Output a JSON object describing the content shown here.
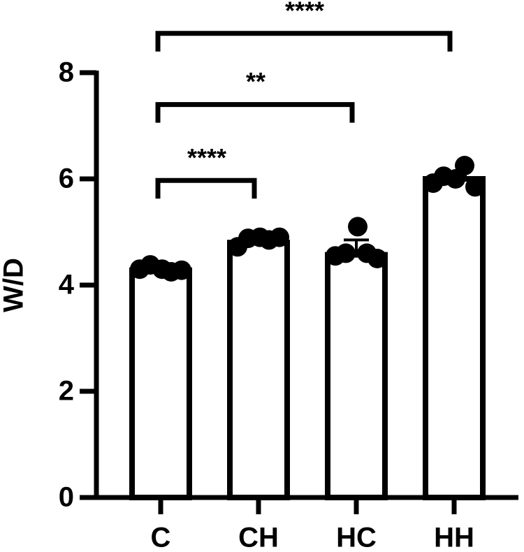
{
  "chart_data": {
    "type": "bar",
    "y_label": "W/D",
    "categories": [
      "C",
      "CH",
      "HC",
      "HH"
    ],
    "values": [
      4.28,
      4.8,
      4.57,
      6.0
    ],
    "errors": [
      0.03,
      0.04,
      0.28,
      0.07
    ],
    "points": [
      [
        4.3,
        4.38,
        4.3,
        4.25,
        4.28
      ],
      [
        4.72,
        4.88,
        4.9,
        4.85,
        4.9
      ],
      [
        4.55,
        4.6,
        5.1,
        4.6,
        4.5
      ],
      [
        5.92,
        6.05,
        6.0,
        6.25,
        5.85
      ]
    ],
    "color": "#000000",
    "ylim": [
      0,
      8
    ],
    "yticks": [
      0,
      2,
      4,
      6,
      8
    ],
    "annotations": [
      {
        "from": "C",
        "to": "CH",
        "y": 5.97,
        "label": "****"
      },
      {
        "from": "C",
        "to": "HC",
        "y": 7.4,
        "label": "**"
      },
      {
        "from": "C",
        "to": "HH",
        "y": 8.74,
        "label": "****"
      }
    ]
  }
}
